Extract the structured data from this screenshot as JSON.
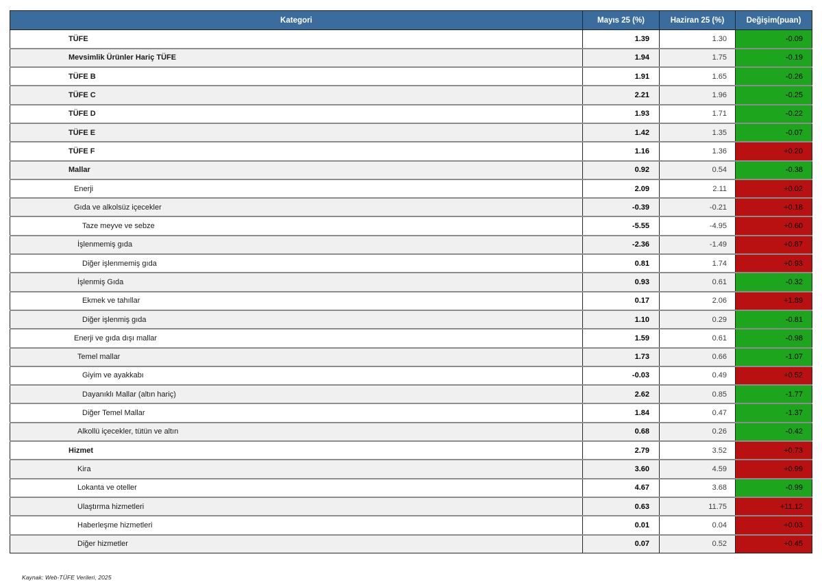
{
  "chart_data": {
    "type": "table",
    "columns": [
      "Kategori",
      "Mayıs 25 (%)",
      "Haziran 25 (%)",
      "Değişim(puan)"
    ],
    "rows": [
      {
        "category": "TÜFE",
        "indent": 0,
        "bold": true,
        "mayis_25_pct": "1.39",
        "haziran_25_pct": "1.30",
        "degisim_puan": "-0.09"
      },
      {
        "category": "Mevsimlik Ürünler Hariç TÜFE",
        "indent": 0,
        "bold": true,
        "mayis_25_pct": "1.94",
        "haziran_25_pct": "1.75",
        "degisim_puan": "-0.19"
      },
      {
        "category": "TÜFE B",
        "indent": 0,
        "bold": true,
        "mayis_25_pct": "1.91",
        "haziran_25_pct": "1.65",
        "degisim_puan": "-0.26"
      },
      {
        "category": "TÜFE C",
        "indent": 0,
        "bold": true,
        "mayis_25_pct": "2.21",
        "haziran_25_pct": "1.96",
        "degisim_puan": "-0.25"
      },
      {
        "category": "TÜFE D",
        "indent": 0,
        "bold": true,
        "mayis_25_pct": "1.93",
        "haziran_25_pct": "1.71",
        "degisim_puan": "-0.22"
      },
      {
        "category": "TÜFE E",
        "indent": 0,
        "bold": true,
        "mayis_25_pct": "1.42",
        "haziran_25_pct": "1.35",
        "degisim_puan": "-0.07"
      },
      {
        "category": "TÜFE F",
        "indent": 0,
        "bold": true,
        "mayis_25_pct": "1.16",
        "haziran_25_pct": "1.36",
        "degisim_puan": "+0.20"
      },
      {
        "category": "Mallar",
        "indent": 0,
        "bold": true,
        "mayis_25_pct": "0.92",
        "haziran_25_pct": "0.54",
        "degisim_puan": "-0.38"
      },
      {
        "category": "Enerji",
        "indent": 1,
        "bold": false,
        "mayis_25_pct": "2.09",
        "haziran_25_pct": "2.11",
        "degisim_puan": "+0.02"
      },
      {
        "category": "Gıda ve alkolsüz içecekler",
        "indent": 1,
        "bold": false,
        "mayis_25_pct": "-0.39",
        "haziran_25_pct": "-0.21",
        "degisim_puan": "+0.18"
      },
      {
        "category": "Taze meyve ve sebze",
        "indent": 3,
        "bold": false,
        "mayis_25_pct": "-5.55",
        "haziran_25_pct": "-4.95",
        "degisim_puan": "+0.60"
      },
      {
        "category": "İşlenmemiş gıda",
        "indent": 2,
        "bold": false,
        "mayis_25_pct": "-2.36",
        "haziran_25_pct": "-1.49",
        "degisim_puan": "+0.87"
      },
      {
        "category": "Diğer işlenmemiş gıda",
        "indent": 3,
        "bold": false,
        "mayis_25_pct": "0.81",
        "haziran_25_pct": "1.74",
        "degisim_puan": "+0.93"
      },
      {
        "category": "İşlenmiş Gıda",
        "indent": 2,
        "bold": false,
        "mayis_25_pct": "0.93",
        "haziran_25_pct": "0.61",
        "degisim_puan": "-0.32"
      },
      {
        "category": "Ekmek ve tahıllar",
        "indent": 3,
        "bold": false,
        "mayis_25_pct": "0.17",
        "haziran_25_pct": "2.06",
        "degisim_puan": "+1.89"
      },
      {
        "category": "Diğer işlenmiş gıda",
        "indent": 3,
        "bold": false,
        "mayis_25_pct": "1.10",
        "haziran_25_pct": "0.29",
        "degisim_puan": "-0.81"
      },
      {
        "category": "Enerji ve gıda dışı mallar",
        "indent": 1,
        "bold": false,
        "mayis_25_pct": "1.59",
        "haziran_25_pct": "0.61",
        "degisim_puan": "-0.98"
      },
      {
        "category": "Temel mallar",
        "indent": 2,
        "bold": false,
        "mayis_25_pct": "1.73",
        "haziran_25_pct": "0.66",
        "degisim_puan": "-1.07"
      },
      {
        "category": "Giyim ve ayakkabı",
        "indent": 3,
        "bold": false,
        "mayis_25_pct": "-0.03",
        "haziran_25_pct": "0.49",
        "degisim_puan": "+0.52"
      },
      {
        "category": "Dayanıklı Mallar (altın hariç)",
        "indent": 3,
        "bold": false,
        "mayis_25_pct": "2.62",
        "haziran_25_pct": "0.85",
        "degisim_puan": "-1.77"
      },
      {
        "category": "Diğer Temel Mallar",
        "indent": 3,
        "bold": false,
        "mayis_25_pct": "1.84",
        "haziran_25_pct": "0.47",
        "degisim_puan": "-1.37"
      },
      {
        "category": "Alkollü içecekler, tütün ve altın",
        "indent": 2,
        "bold": false,
        "mayis_25_pct": "0.68",
        "haziran_25_pct": "0.26",
        "degisim_puan": "-0.42"
      },
      {
        "category": "Hizmet",
        "indent": 0,
        "bold": true,
        "mayis_25_pct": "2.79",
        "haziran_25_pct": "3.52",
        "degisim_puan": "+0.73"
      },
      {
        "category": "Kira",
        "indent": 2,
        "bold": false,
        "mayis_25_pct": "3.60",
        "haziran_25_pct": "4.59",
        "degisim_puan": "+0.99"
      },
      {
        "category": "Lokanta ve oteller",
        "indent": 2,
        "bold": false,
        "mayis_25_pct": "4.67",
        "haziran_25_pct": "3.68",
        "degisim_puan": "-0.99"
      },
      {
        "category": "Ulaştırma hizmetleri",
        "indent": 2,
        "bold": false,
        "mayis_25_pct": "0.63",
        "haziran_25_pct": "11.75",
        "degisim_puan": "+11.12"
      },
      {
        "category": "Haberleşme hizmetleri",
        "indent": 2,
        "bold": false,
        "mayis_25_pct": "0.01",
        "haziran_25_pct": "0.04",
        "degisim_puan": "+0.03"
      },
      {
        "category": "Diğer hizmetler",
        "indent": 2,
        "bold": false,
        "mayis_25_pct": "0.07",
        "haziran_25_pct": "0.52",
        "degisim_puan": "+0.45"
      }
    ],
    "legend_note": "green background = decrease (negative change), red background = increase (positive change)"
  },
  "footer": {
    "source_note": "Kaynak: Web-TÜFE Verileri, 2025"
  },
  "colors": {
    "header_bg": "#3A6D9E",
    "header_text": "#FFFFFF",
    "increase_bg": "#B91111",
    "decrease_bg": "#1EA51E",
    "alt_row_bg": "#F0F0F0"
  }
}
